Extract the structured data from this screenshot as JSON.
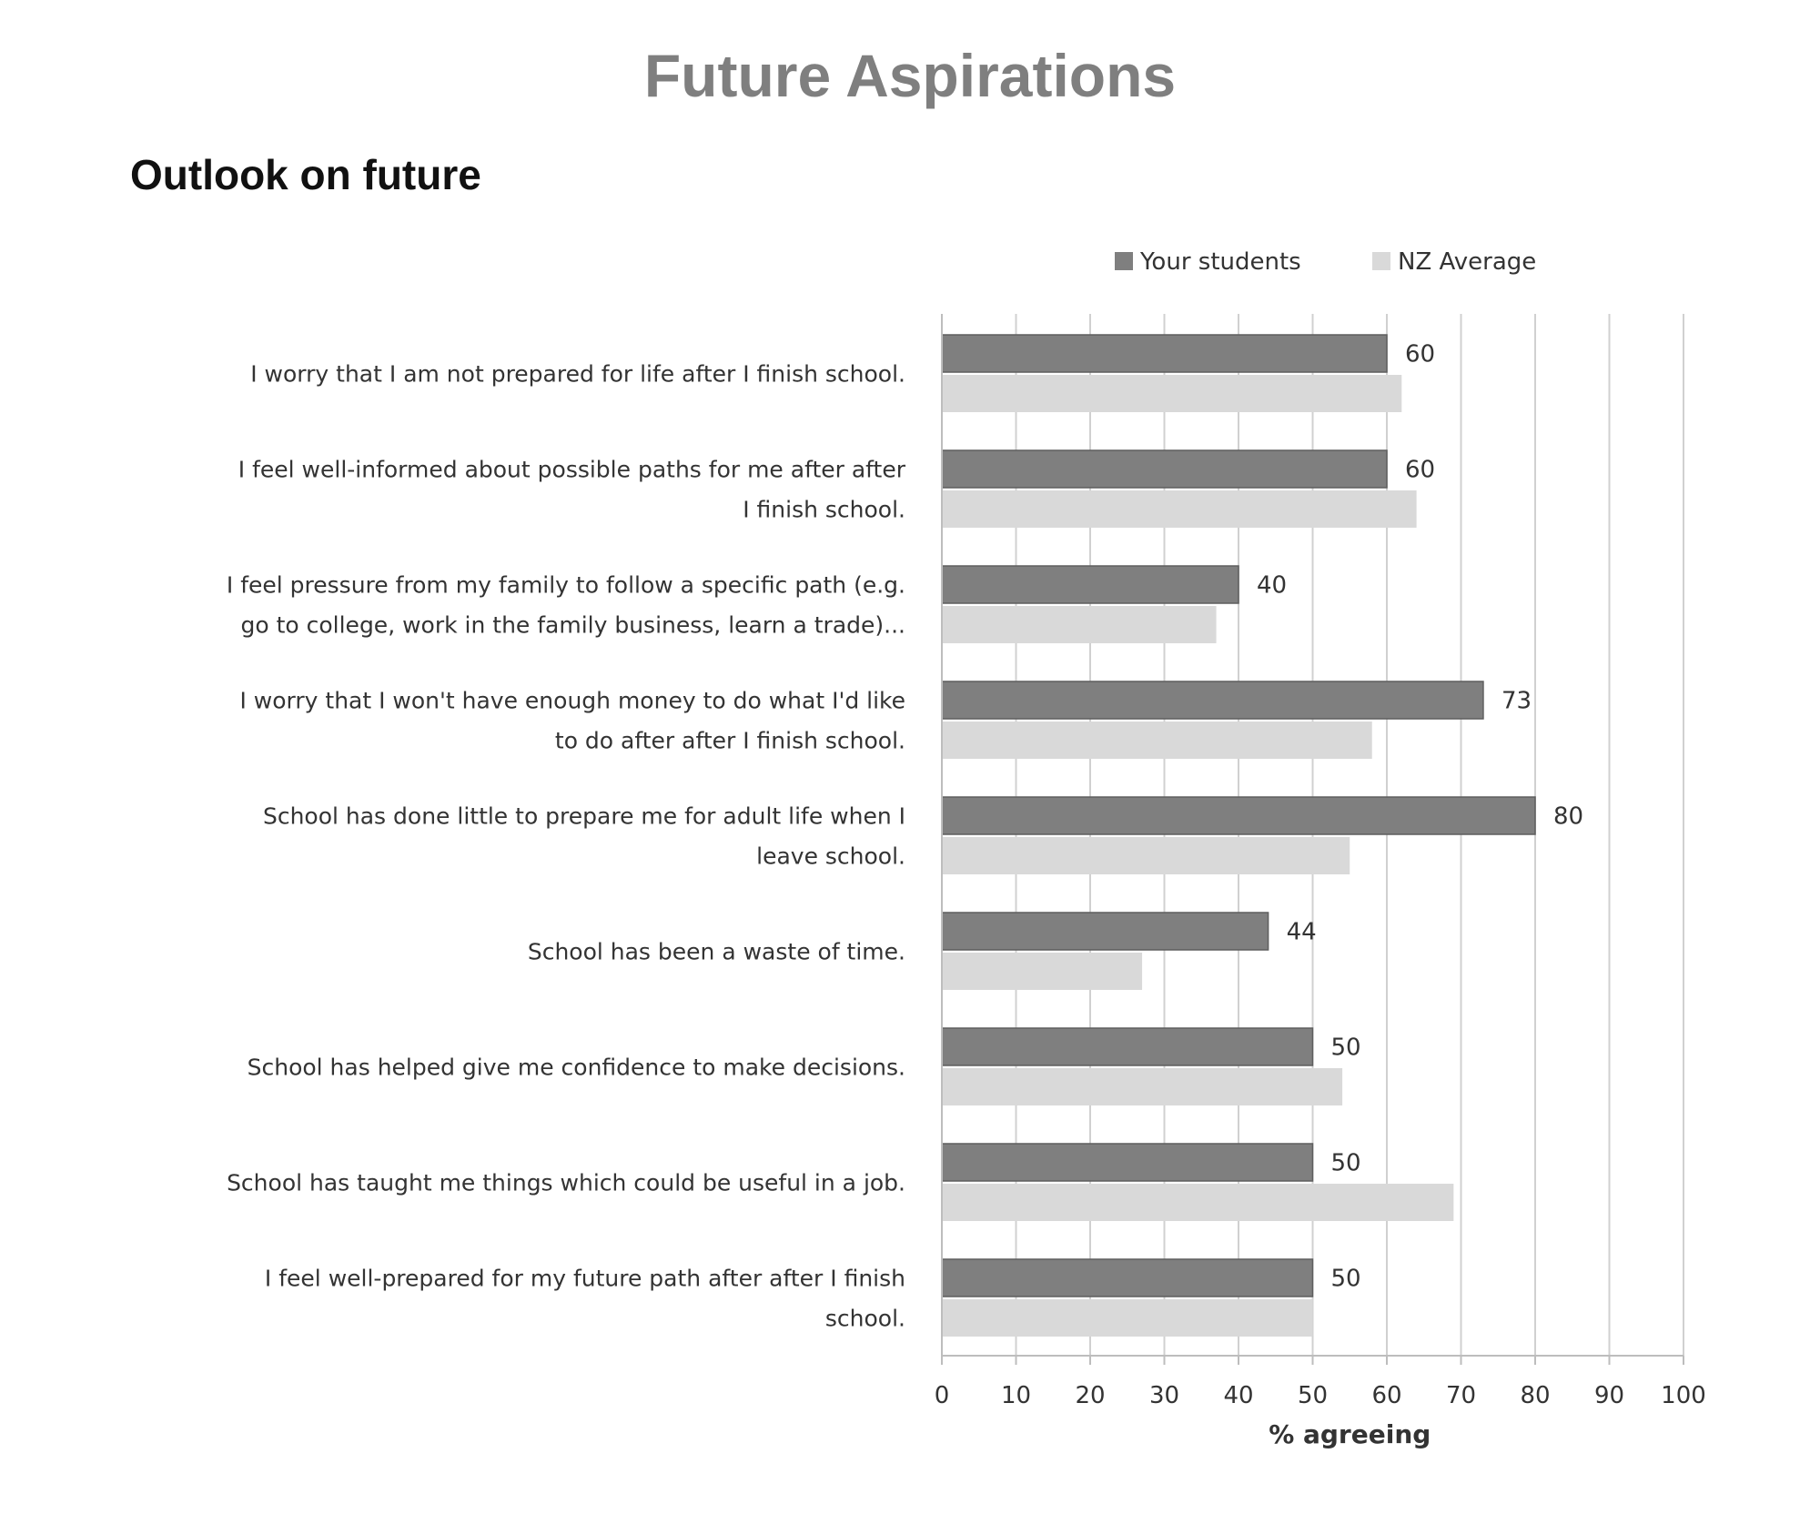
{
  "page": {
    "title": "Future Aspirations",
    "section_title": "Outlook on future"
  },
  "chart_data": {
    "type": "bar",
    "orientation": "horizontal",
    "title": "Outlook on future",
    "categories": [
      [
        "I worry that I am not prepared for life after I finish school."
      ],
      [
        "I feel well-informed about possible paths for me after after",
        "I finish school."
      ],
      [
        "I feel pressure from my family to follow a specific path (e.g.",
        "go to college, work in the family business, learn a trade)..."
      ],
      [
        "I worry that I won't have enough money to do what I'd like",
        "to do after after I finish school."
      ],
      [
        "School has done little to prepare me for adult life when I",
        "leave school."
      ],
      [
        "School has been a waste of time."
      ],
      [
        "School has helped give me confidence to make decisions."
      ],
      [
        "School has taught me things which could be useful in a job."
      ],
      [
        "I feel well-prepared for my future path after after I finish",
        "school."
      ]
    ],
    "series": [
      {
        "name": "Your students",
        "color": "#7f7f7f",
        "values": [
          60,
          60,
          40,
          73,
          80,
          44,
          50,
          50,
          50
        ],
        "show_labels": true
      },
      {
        "name": "NZ Average",
        "color": "#d9d9d9",
        "values": [
          62,
          64,
          37,
          58,
          55,
          27,
          54,
          69,
          50
        ],
        "show_labels": false
      }
    ],
    "xlabel": "% agreeing",
    "ylabel": "",
    "xlim": [
      0,
      100
    ],
    "xticks": [
      0,
      10,
      20,
      30,
      40,
      50,
      60,
      70,
      80,
      90,
      100
    ],
    "grid": true,
    "legend": "top-right"
  }
}
